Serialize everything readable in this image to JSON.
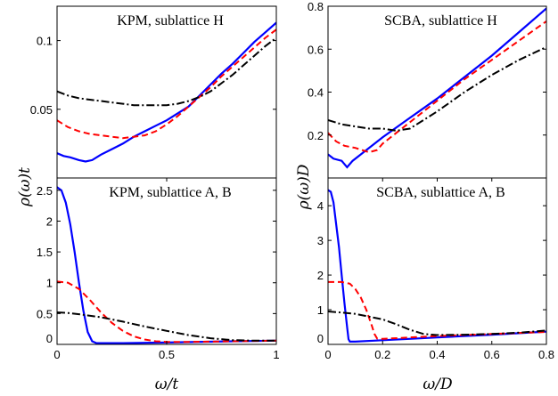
{
  "chart_data": [
    {
      "type": "line",
      "title": "KPM, sublattice H",
      "xlim": [
        0,
        1
      ],
      "ylim": [
        0,
        0.125
      ],
      "xticks": [],
      "yticks": [
        "0.05",
        "0.1"
      ],
      "series": [
        {
          "style": "solid",
          "color": "#0000ff",
          "x": [
            0,
            0.03,
            0.06,
            0.1,
            0.13,
            0.16,
            0.2,
            0.25,
            0.3,
            0.35,
            0.4,
            0.45,
            0.5,
            0.55,
            0.6,
            0.65,
            0.7,
            0.75,
            0.8,
            0.85,
            0.9,
            0.95,
            1.0
          ],
          "y": [
            0.018,
            0.016,
            0.015,
            0.013,
            0.012,
            0.013,
            0.017,
            0.021,
            0.025,
            0.03,
            0.034,
            0.038,
            0.042,
            0.047,
            0.052,
            0.06,
            0.068,
            0.076,
            0.083,
            0.091,
            0.099,
            0.106,
            0.113
          ]
        },
        {
          "style": "dashed",
          "color": "#ff0000",
          "x": [
            0,
            0.05,
            0.1,
            0.15,
            0.2,
            0.25,
            0.3,
            0.35,
            0.4,
            0.45,
            0.5,
            0.55,
            0.6,
            0.65,
            0.7,
            0.75,
            0.8,
            0.85,
            0.9,
            0.95,
            1.0
          ],
          "y": [
            0.042,
            0.037,
            0.034,
            0.032,
            0.031,
            0.03,
            0.029,
            0.03,
            0.031,
            0.034,
            0.039,
            0.045,
            0.052,
            0.059,
            0.066,
            0.074,
            0.081,
            0.088,
            0.095,
            0.102,
            0.108
          ]
        },
        {
          "style": "dashdot",
          "color": "#000000",
          "x": [
            0,
            0.05,
            0.1,
            0.15,
            0.2,
            0.25,
            0.3,
            0.35,
            0.4,
            0.45,
            0.5,
            0.55,
            0.6,
            0.65,
            0.7,
            0.75,
            0.8,
            0.85,
            0.9,
            0.95,
            1.0
          ],
          "y": [
            0.063,
            0.06,
            0.058,
            0.057,
            0.056,
            0.055,
            0.054,
            0.053,
            0.053,
            0.053,
            0.053,
            0.054,
            0.056,
            0.059,
            0.063,
            0.069,
            0.075,
            0.082,
            0.089,
            0.096,
            0.102
          ]
        }
      ]
    },
    {
      "type": "line",
      "title": "SCBA, sublattice H",
      "xlim": [
        0,
        0.8
      ],
      "ylim": [
        0,
        0.8
      ],
      "xticks": [],
      "yticks": [
        "0.2",
        "0.4",
        "0.6",
        "0.8"
      ],
      "series": [
        {
          "style": "solid",
          "color": "#0000ff",
          "x": [
            0,
            0.02,
            0.05,
            0.07,
            0.09,
            0.12,
            0.2,
            0.3,
            0.4,
            0.5,
            0.6,
            0.7,
            0.8
          ],
          "y": [
            0.11,
            0.09,
            0.08,
            0.05,
            0.08,
            0.11,
            0.19,
            0.28,
            0.37,
            0.47,
            0.57,
            0.68,
            0.79
          ]
        },
        {
          "style": "dashed",
          "color": "#ff0000",
          "x": [
            0,
            0.03,
            0.06,
            0.1,
            0.15,
            0.18,
            0.2,
            0.25,
            0.3,
            0.4,
            0.5,
            0.6,
            0.7,
            0.8
          ],
          "y": [
            0.21,
            0.17,
            0.15,
            0.14,
            0.12,
            0.13,
            0.16,
            0.21,
            0.26,
            0.36,
            0.46,
            0.55,
            0.64,
            0.73
          ]
        },
        {
          "style": "dashdot",
          "color": "#000000",
          "x": [
            0,
            0.05,
            0.1,
            0.15,
            0.2,
            0.25,
            0.3,
            0.35,
            0.4,
            0.5,
            0.6,
            0.7,
            0.8
          ],
          "y": [
            0.27,
            0.25,
            0.24,
            0.23,
            0.23,
            0.22,
            0.23,
            0.27,
            0.31,
            0.4,
            0.48,
            0.55,
            0.61
          ]
        }
      ]
    },
    {
      "type": "line",
      "title": "KPM, sublattice A, B",
      "xlim": [
        0,
        1
      ],
      "ylim": [
        0,
        2.7
      ],
      "xticks": [
        "0",
        "0.5",
        "1"
      ],
      "yticks": [
        "0",
        "0.5",
        "1",
        "1.5",
        "2",
        "2.5"
      ],
      "series": [
        {
          "style": "solid",
          "color": "#0000ff",
          "x": [
            0,
            0.02,
            0.04,
            0.06,
            0.08,
            0.1,
            0.12,
            0.14,
            0.16,
            0.18,
            0.2,
            0.25,
            0.3,
            0.5,
            0.8,
            1.0
          ],
          "y": [
            2.55,
            2.5,
            2.3,
            1.95,
            1.5,
            1.0,
            0.55,
            0.2,
            0.05,
            0.02,
            0.02,
            0.02,
            0.02,
            0.03,
            0.05,
            0.06
          ]
        },
        {
          "style": "dashed",
          "color": "#ff0000",
          "x": [
            0,
            0.05,
            0.1,
            0.15,
            0.2,
            0.25,
            0.3,
            0.35,
            0.4,
            0.45,
            0.5,
            0.6,
            0.8,
            1.0
          ],
          "y": [
            1.02,
            1.0,
            0.9,
            0.72,
            0.52,
            0.35,
            0.22,
            0.13,
            0.08,
            0.05,
            0.04,
            0.04,
            0.05,
            0.06
          ]
        },
        {
          "style": "dashdot",
          "color": "#000000",
          "x": [
            0,
            0.05,
            0.1,
            0.2,
            0.3,
            0.4,
            0.5,
            0.6,
            0.7,
            0.8,
            0.9,
            1.0
          ],
          "y": [
            0.52,
            0.51,
            0.49,
            0.44,
            0.37,
            0.29,
            0.22,
            0.15,
            0.1,
            0.07,
            0.06,
            0.06
          ]
        }
      ]
    },
    {
      "type": "line",
      "title": "SCBA, sublattice A, B",
      "xlim": [
        0,
        0.8
      ],
      "ylim": [
        0,
        4.8
      ],
      "xticks": [
        "0",
        "0.2",
        "0.4",
        "0.6",
        "0.8"
      ],
      "yticks": [
        "0",
        "1",
        "2",
        "3",
        "4"
      ],
      "series": [
        {
          "style": "solid",
          "color": "#0000ff",
          "x": [
            0,
            0.01,
            0.02,
            0.04,
            0.05,
            0.06,
            0.07,
            0.075,
            0.08,
            0.1,
            0.2,
            0.4,
            0.6,
            0.8
          ],
          "y": [
            4.45,
            4.4,
            4.1,
            2.8,
            2.0,
            1.2,
            0.5,
            0.15,
            0.08,
            0.08,
            0.12,
            0.2,
            0.28,
            0.37
          ]
        },
        {
          "style": "dashed",
          "color": "#ff0000",
          "x": [
            0,
            0.05,
            0.08,
            0.1,
            0.12,
            0.14,
            0.16,
            0.17,
            0.18,
            0.2,
            0.3,
            0.4,
            0.6,
            0.8
          ],
          "y": [
            1.8,
            1.8,
            1.75,
            1.6,
            1.35,
            1.0,
            0.55,
            0.3,
            0.17,
            0.16,
            0.2,
            0.24,
            0.3,
            0.36
          ]
        },
        {
          "style": "dashdot",
          "color": "#000000",
          "x": [
            0,
            0.05,
            0.1,
            0.15,
            0.2,
            0.25,
            0.3,
            0.35,
            0.4,
            0.5,
            0.6,
            0.7,
            0.8
          ],
          "y": [
            0.95,
            0.92,
            0.88,
            0.8,
            0.72,
            0.58,
            0.42,
            0.3,
            0.27,
            0.28,
            0.3,
            0.34,
            0.4
          ]
        }
      ]
    }
  ],
  "labels": {
    "left_ylabel": "ρ(ω)t",
    "right_ylabel": "ρ(ω)D",
    "left_xlabel": "ω/t",
    "right_xlabel": "ω/D"
  }
}
